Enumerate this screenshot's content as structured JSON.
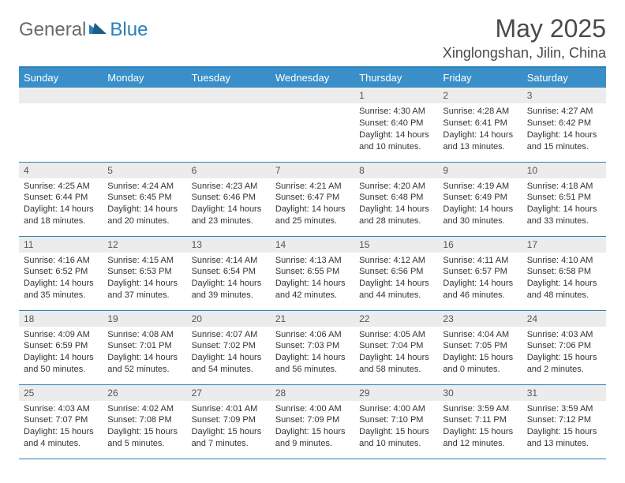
{
  "logo": {
    "part1": "General",
    "part2": "Blue"
  },
  "title": "May 2025",
  "location": "Xinglongshan, Jilin, China",
  "colors": {
    "header_bg": "#3a8fc8",
    "header_border": "#2a7fba",
    "daynum_bg": "#ececec",
    "logo_gray": "#6a6a6a",
    "logo_blue": "#2a7fba",
    "text": "#333333"
  },
  "weekdays": [
    "Sunday",
    "Monday",
    "Tuesday",
    "Wednesday",
    "Thursday",
    "Friday",
    "Saturday"
  ],
  "weeks": [
    [
      null,
      null,
      null,
      null,
      {
        "n": "1",
        "sr": "4:30 AM",
        "ss": "6:40 PM",
        "dl": "14 hours and 10 minutes."
      },
      {
        "n": "2",
        "sr": "4:28 AM",
        "ss": "6:41 PM",
        "dl": "14 hours and 13 minutes."
      },
      {
        "n": "3",
        "sr": "4:27 AM",
        "ss": "6:42 PM",
        "dl": "14 hours and 15 minutes."
      }
    ],
    [
      {
        "n": "4",
        "sr": "4:25 AM",
        "ss": "6:44 PM",
        "dl": "14 hours and 18 minutes."
      },
      {
        "n": "5",
        "sr": "4:24 AM",
        "ss": "6:45 PM",
        "dl": "14 hours and 20 minutes."
      },
      {
        "n": "6",
        "sr": "4:23 AM",
        "ss": "6:46 PM",
        "dl": "14 hours and 23 minutes."
      },
      {
        "n": "7",
        "sr": "4:21 AM",
        "ss": "6:47 PM",
        "dl": "14 hours and 25 minutes."
      },
      {
        "n": "8",
        "sr": "4:20 AM",
        "ss": "6:48 PM",
        "dl": "14 hours and 28 minutes."
      },
      {
        "n": "9",
        "sr": "4:19 AM",
        "ss": "6:49 PM",
        "dl": "14 hours and 30 minutes."
      },
      {
        "n": "10",
        "sr": "4:18 AM",
        "ss": "6:51 PM",
        "dl": "14 hours and 33 minutes."
      }
    ],
    [
      {
        "n": "11",
        "sr": "4:16 AM",
        "ss": "6:52 PM",
        "dl": "14 hours and 35 minutes."
      },
      {
        "n": "12",
        "sr": "4:15 AM",
        "ss": "6:53 PM",
        "dl": "14 hours and 37 minutes."
      },
      {
        "n": "13",
        "sr": "4:14 AM",
        "ss": "6:54 PM",
        "dl": "14 hours and 39 minutes."
      },
      {
        "n": "14",
        "sr": "4:13 AM",
        "ss": "6:55 PM",
        "dl": "14 hours and 42 minutes."
      },
      {
        "n": "15",
        "sr": "4:12 AM",
        "ss": "6:56 PM",
        "dl": "14 hours and 44 minutes."
      },
      {
        "n": "16",
        "sr": "4:11 AM",
        "ss": "6:57 PM",
        "dl": "14 hours and 46 minutes."
      },
      {
        "n": "17",
        "sr": "4:10 AM",
        "ss": "6:58 PM",
        "dl": "14 hours and 48 minutes."
      }
    ],
    [
      {
        "n": "18",
        "sr": "4:09 AM",
        "ss": "6:59 PM",
        "dl": "14 hours and 50 minutes."
      },
      {
        "n": "19",
        "sr": "4:08 AM",
        "ss": "7:01 PM",
        "dl": "14 hours and 52 minutes."
      },
      {
        "n": "20",
        "sr": "4:07 AM",
        "ss": "7:02 PM",
        "dl": "14 hours and 54 minutes."
      },
      {
        "n": "21",
        "sr": "4:06 AM",
        "ss": "7:03 PM",
        "dl": "14 hours and 56 minutes."
      },
      {
        "n": "22",
        "sr": "4:05 AM",
        "ss": "7:04 PM",
        "dl": "14 hours and 58 minutes."
      },
      {
        "n": "23",
        "sr": "4:04 AM",
        "ss": "7:05 PM",
        "dl": "15 hours and 0 minutes."
      },
      {
        "n": "24",
        "sr": "4:03 AM",
        "ss": "7:06 PM",
        "dl": "15 hours and 2 minutes."
      }
    ],
    [
      {
        "n": "25",
        "sr": "4:03 AM",
        "ss": "7:07 PM",
        "dl": "15 hours and 4 minutes."
      },
      {
        "n": "26",
        "sr": "4:02 AM",
        "ss": "7:08 PM",
        "dl": "15 hours and 5 minutes."
      },
      {
        "n": "27",
        "sr": "4:01 AM",
        "ss": "7:09 PM",
        "dl": "15 hours and 7 minutes."
      },
      {
        "n": "28",
        "sr": "4:00 AM",
        "ss": "7:09 PM",
        "dl": "15 hours and 9 minutes."
      },
      {
        "n": "29",
        "sr": "4:00 AM",
        "ss": "7:10 PM",
        "dl": "15 hours and 10 minutes."
      },
      {
        "n": "30",
        "sr": "3:59 AM",
        "ss": "7:11 PM",
        "dl": "15 hours and 12 minutes."
      },
      {
        "n": "31",
        "sr": "3:59 AM",
        "ss": "7:12 PM",
        "dl": "15 hours and 13 minutes."
      }
    ]
  ],
  "labels": {
    "sunrise": "Sunrise:",
    "sunset": "Sunset:",
    "daylight": "Daylight:"
  },
  "typography": {
    "title_fontsize": 32,
    "location_fontsize": 18,
    "header_fontsize": 13,
    "cell_fontsize": 11
  }
}
